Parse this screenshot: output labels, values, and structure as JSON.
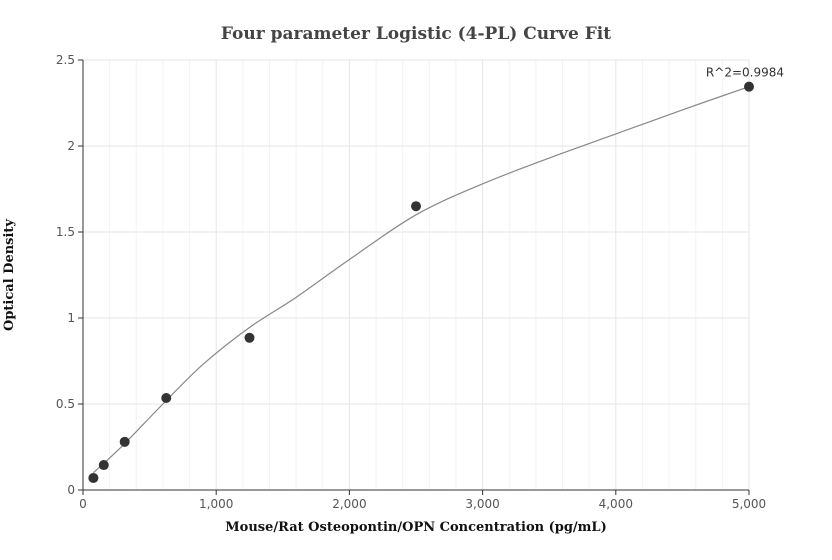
{
  "chart_data": {
    "type": "scatter",
    "title": "Four parameter Logistic (4-PL) Curve Fit",
    "xlabel": "Mouse/Rat Osteopontin/OPN Concentration (pg/mL)",
    "ylabel": "Optical Density",
    "xlim": [
      0,
      5000
    ],
    "ylim": [
      0,
      2.5
    ],
    "x_ticks": [
      0,
      1000,
      2000,
      3000,
      4000,
      5000
    ],
    "x_tick_labels": [
      "0",
      "1,000",
      "2,000",
      "3,000",
      "4,000",
      "5,000"
    ],
    "y_ticks": [
      0,
      0.5,
      1,
      1.5,
      2,
      2.5
    ],
    "y_tick_labels": [
      "0",
      "0.5",
      "1",
      "1.5",
      "2",
      "2.5"
    ],
    "grid": true,
    "annotation": "R^2=0.9984",
    "series": [
      {
        "points": [
          {
            "x": 78,
            "y": 0.07
          },
          {
            "x": 156,
            "y": 0.145
          },
          {
            "x": 313,
            "y": 0.28
          },
          {
            "x": 625,
            "y": 0.535
          },
          {
            "x": 1250,
            "y": 0.885
          },
          {
            "x": 2500,
            "y": 1.65
          },
          {
            "x": 5000,
            "y": 2.345
          }
        ],
        "marker_color": "#333333"
      }
    ],
    "fit_curve": {
      "points": [
        {
          "x": 78,
          "y": 0.1
        },
        {
          "x": 300,
          "y": 0.26
        },
        {
          "x": 600,
          "y": 0.5
        },
        {
          "x": 900,
          "y": 0.73
        },
        {
          "x": 1250,
          "y": 0.945
        },
        {
          "x": 1600,
          "y": 1.12
        },
        {
          "x": 2000,
          "y": 1.34
        },
        {
          "x": 2500,
          "y": 1.6
        },
        {
          "x": 3000,
          "y": 1.78
        },
        {
          "x": 3500,
          "y": 1.93
        },
        {
          "x": 4000,
          "y": 2.07
        },
        {
          "x": 4500,
          "y": 2.21
        },
        {
          "x": 5000,
          "y": 2.345
        }
      ],
      "color": "#888888"
    },
    "colors": {
      "grid": "#e6e6e6",
      "minor_grid": "#f3f3f3",
      "axis": "#333333"
    }
  }
}
